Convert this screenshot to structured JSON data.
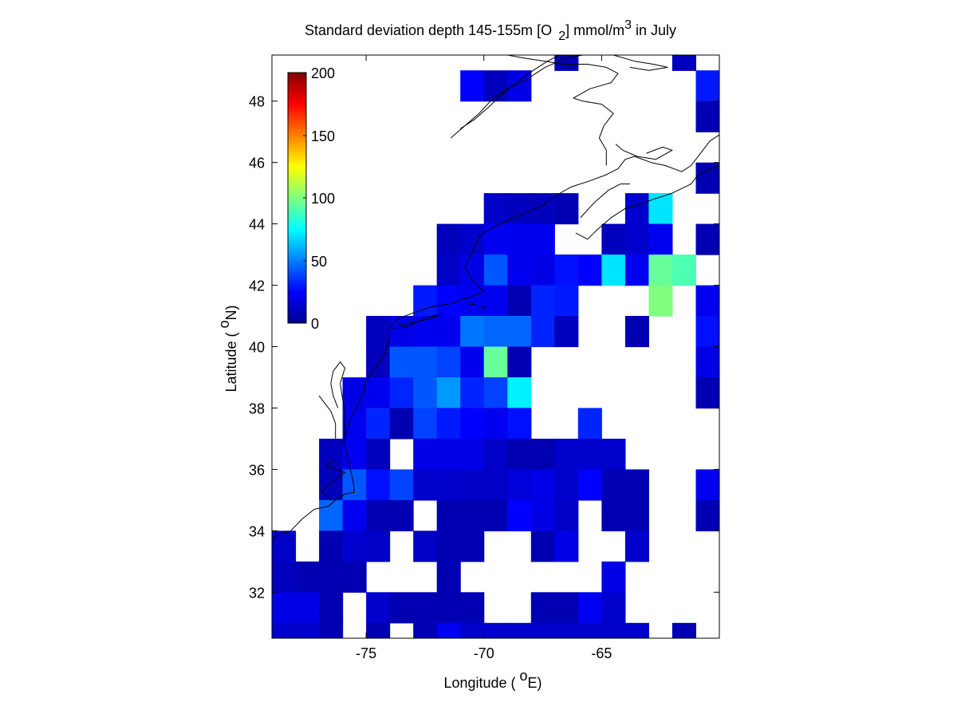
{
  "figure": {
    "title": {
      "pre": "Standard deviation depth 145-155m [O",
      "sub": "2",
      "mid": "] mmol/m",
      "sup": "3",
      "post": " in July"
    },
    "xlabel": {
      "pre": "Longitude ( ",
      "sup": "o",
      "post": "E)"
    },
    "ylabel": {
      "pre": "Latitude ( ",
      "sup": "o",
      "post": "N)"
    },
    "colorbar_ticks": [
      "200",
      "150",
      "100",
      "50",
      "0"
    ],
    "colormap": "jet",
    "land_color": "#ffffff",
    "coastline_color": "#000000"
  },
  "chart_data": {
    "type": "heatmap",
    "x_range": [
      -79.0,
      -60.0
    ],
    "y_range": [
      30.5,
      49.5
    ],
    "grid_step_deg": 1,
    "value_range": [
      0,
      200
    ],
    "x_ticks": [
      -75,
      -70,
      -65
    ],
    "x_tick_labels": [
      "-75",
      "-70",
      "-65"
    ],
    "y_ticks": [
      32,
      34,
      36,
      38,
      40,
      42,
      44,
      46,
      48
    ],
    "y_tick_labels": [
      "32",
      "34",
      "36",
      "38",
      "40",
      "42",
      "44",
      "46",
      "48"
    ],
    "cells_note": "each cell = [west longitude, south latitude, value]",
    "cells": [
      [
        -67,
        49,
        10
      ],
      [
        -62,
        49,
        12
      ],
      [
        -61,
        48,
        30
      ],
      [
        -71,
        48,
        25
      ],
      [
        -70,
        48,
        12
      ],
      [
        -69,
        48,
        20
      ],
      [
        -61,
        47,
        10
      ],
      [
        -61,
        45,
        10
      ],
      [
        -60,
        45,
        12
      ],
      [
        -70,
        44,
        14
      ],
      [
        -69,
        44,
        12
      ],
      [
        -68,
        44,
        12
      ],
      [
        -67,
        44,
        10
      ],
      [
        -64,
        44,
        15
      ],
      [
        -63,
        44,
        70
      ],
      [
        -72,
        43,
        12
      ],
      [
        -71,
        43,
        15
      ],
      [
        -70,
        43,
        22
      ],
      [
        -69,
        43,
        22
      ],
      [
        -68,
        43,
        22
      ],
      [
        -65,
        43,
        12
      ],
      [
        -64,
        43,
        15
      ],
      [
        -63,
        43,
        22
      ],
      [
        -61,
        43,
        10
      ],
      [
        -72,
        42,
        14
      ],
      [
        -71,
        42,
        20
      ],
      [
        -70,
        42,
        42
      ],
      [
        -69,
        42,
        22
      ],
      [
        -68,
        42,
        20
      ],
      [
        -67,
        42,
        28
      ],
      [
        -66,
        42,
        25
      ],
      [
        -65,
        42,
        70
      ],
      [
        -64,
        42,
        22
      ],
      [
        -63,
        42,
        95
      ],
      [
        -62,
        42,
        90
      ],
      [
        -73,
        41,
        30
      ],
      [
        -72,
        41,
        25
      ],
      [
        -71,
        41,
        22
      ],
      [
        -70,
        41,
        22
      ],
      [
        -69,
        41,
        10
      ],
      [
        -68,
        41,
        32
      ],
      [
        -67,
        41,
        30
      ],
      [
        -63,
        41,
        100
      ],
      [
        -61,
        41,
        22
      ],
      [
        -60,
        41,
        14
      ],
      [
        -75,
        40,
        12
      ],
      [
        -74,
        40,
        20
      ],
      [
        -73,
        40,
        22
      ],
      [
        -72,
        40,
        22
      ],
      [
        -71,
        40,
        48
      ],
      [
        -70,
        40,
        45
      ],
      [
        -69,
        40,
        45
      ],
      [
        -68,
        40,
        32
      ],
      [
        -67,
        40,
        12
      ],
      [
        -64,
        40,
        10
      ],
      [
        -61,
        40,
        28
      ],
      [
        -75,
        39,
        12
      ],
      [
        -74,
        39,
        42
      ],
      [
        -73,
        39,
        42
      ],
      [
        -72,
        39,
        38
      ],
      [
        -71,
        39,
        22
      ],
      [
        -70,
        39,
        95
      ],
      [
        -69,
        39,
        10
      ],
      [
        -61,
        39,
        20
      ],
      [
        -76,
        38,
        20
      ],
      [
        -75,
        38,
        22
      ],
      [
        -74,
        38,
        32
      ],
      [
        -73,
        38,
        42
      ],
      [
        -72,
        38,
        55
      ],
      [
        -71,
        38,
        32
      ],
      [
        -70,
        38,
        38
      ],
      [
        -69,
        38,
        72
      ],
      [
        -61,
        38,
        10
      ],
      [
        -60,
        38,
        10
      ],
      [
        -76,
        37,
        22
      ],
      [
        -75,
        37,
        32
      ],
      [
        -74,
        37,
        10
      ],
      [
        -73,
        37,
        38
      ],
      [
        -72,
        37,
        30
      ],
      [
        -71,
        37,
        25
      ],
      [
        -70,
        37,
        22
      ],
      [
        -69,
        37,
        28
      ],
      [
        -66,
        37,
        32
      ],
      [
        -60,
        37,
        10
      ],
      [
        -77,
        36,
        12
      ],
      [
        -76,
        36,
        22
      ],
      [
        -75,
        36,
        12
      ],
      [
        -73,
        36,
        20
      ],
      [
        -72,
        36,
        20
      ],
      [
        -71,
        36,
        20
      ],
      [
        -70,
        36,
        14
      ],
      [
        -69,
        36,
        10
      ],
      [
        -68,
        36,
        10
      ],
      [
        -67,
        36,
        15
      ],
      [
        -66,
        36,
        15
      ],
      [
        -65,
        36,
        15
      ],
      [
        -77,
        35,
        12
      ],
      [
        -76,
        35,
        42
      ],
      [
        -75,
        35,
        28
      ],
      [
        -74,
        35,
        38
      ],
      [
        -73,
        35,
        15
      ],
      [
        -72,
        35,
        15
      ],
      [
        -71,
        35,
        14
      ],
      [
        -70,
        35,
        14
      ],
      [
        -69,
        35,
        18
      ],
      [
        -68,
        35,
        20
      ],
      [
        -67,
        35,
        15
      ],
      [
        -66,
        35,
        25
      ],
      [
        -65,
        35,
        10
      ],
      [
        -64,
        35,
        10
      ],
      [
        -61,
        35,
        22
      ],
      [
        -77,
        34,
        45
      ],
      [
        -76,
        34,
        22
      ],
      [
        -75,
        34,
        10
      ],
      [
        -74,
        34,
        10
      ],
      [
        -72,
        34,
        10
      ],
      [
        -71,
        34,
        10
      ],
      [
        -70,
        34,
        10
      ],
      [
        -69,
        34,
        25
      ],
      [
        -68,
        34,
        20
      ],
      [
        -67,
        34,
        14
      ],
      [
        -65,
        34,
        10
      ],
      [
        -64,
        34,
        10
      ],
      [
        -61,
        34,
        10
      ],
      [
        -79,
        33,
        14
      ],
      [
        -77,
        33,
        10
      ],
      [
        -76,
        33,
        15
      ],
      [
        -75,
        33,
        14
      ],
      [
        -73,
        33,
        14
      ],
      [
        -72,
        33,
        10
      ],
      [
        -71,
        33,
        10
      ],
      [
        -68,
        33,
        10
      ],
      [
        -67,
        33,
        20
      ],
      [
        -64,
        33,
        15
      ],
      [
        -79,
        32,
        12
      ],
      [
        -78,
        32,
        10
      ],
      [
        -77,
        32,
        10
      ],
      [
        -76,
        32,
        10
      ],
      [
        -72,
        32,
        10
      ],
      [
        -65,
        32,
        20
      ],
      [
        -79,
        31,
        20
      ],
      [
        -78,
        31,
        20
      ],
      [
        -77,
        31,
        10
      ],
      [
        -75,
        31,
        15
      ],
      [
        -74,
        31,
        10
      ],
      [
        -73,
        31,
        10
      ],
      [
        -72,
        31,
        10
      ],
      [
        -71,
        31,
        10
      ],
      [
        -68,
        31,
        10
      ],
      [
        -67,
        31,
        10
      ],
      [
        -66,
        31,
        22
      ],
      [
        -65,
        31,
        15
      ],
      [
        -79,
        30.5,
        15
      ],
      [
        -78,
        30.5,
        15
      ],
      [
        -77,
        30.5,
        10
      ],
      [
        -75,
        30.5,
        10
      ],
      [
        -73,
        30.5,
        10
      ],
      [
        -72,
        30.5,
        22
      ],
      [
        -71,
        30.5,
        15
      ],
      [
        -70,
        30.5,
        15
      ],
      [
        -69,
        30.5,
        15
      ],
      [
        -68,
        30.5,
        15
      ],
      [
        -67,
        30.5,
        15
      ],
      [
        -66,
        30.5,
        15
      ],
      [
        -65,
        30.5,
        15
      ],
      [
        -64,
        30.5,
        15
      ],
      [
        -62,
        30.5,
        10
      ]
    ],
    "coastline": [
      [
        [
          -79.0,
          33.7
        ],
        [
          -78.7,
          33.9
        ],
        [
          -78.2,
          34.0
        ],
        [
          -77.7,
          34.4
        ],
        [
          -77.2,
          34.7
        ],
        [
          -76.6,
          34.8
        ],
        [
          -76.3,
          35.0
        ],
        [
          -75.9,
          35.2
        ],
        [
          -75.5,
          35.25
        ],
        [
          -75.55,
          35.6
        ],
        [
          -75.7,
          36.1
        ],
        [
          -75.95,
          36.9
        ],
        [
          -75.7,
          37.6
        ],
        [
          -75.35,
          38.1
        ],
        [
          -75.1,
          38.5
        ],
        [
          -75.05,
          38.8
        ],
        [
          -74.9,
          39.0
        ],
        [
          -74.6,
          39.3
        ],
        [
          -74.2,
          39.8
        ],
        [
          -74.0,
          40.3
        ],
        [
          -74.0,
          40.6
        ],
        [
          -73.7,
          40.9
        ],
        [
          -73.0,
          41.1
        ],
        [
          -72.2,
          41.3
        ],
        [
          -71.4,
          41.4
        ],
        [
          -70.9,
          41.55
        ],
        [
          -70.6,
          41.6
        ],
        [
          -70.0,
          41.8
        ],
        [
          -70.3,
          42.0
        ],
        [
          -70.6,
          42.3
        ],
        [
          -70.8,
          42.6
        ],
        [
          -70.6,
          42.9
        ],
        [
          -70.2,
          43.6
        ],
        [
          -69.6,
          43.9
        ],
        [
          -69.0,
          44.1
        ],
        [
          -68.4,
          44.3
        ],
        [
          -67.5,
          44.6
        ],
        [
          -67.0,
          44.9
        ],
        [
          -66.3,
          45.2
        ],
        [
          -65.5,
          45.4
        ],
        [
          -64.8,
          45.6
        ],
        [
          -64.3,
          45.8
        ],
        [
          -64.0,
          46.1
        ],
        [
          -63.6,
          46.2
        ],
        [
          -62.9,
          46.0
        ],
        [
          -62.3,
          45.9
        ],
        [
          -61.6,
          45.7
        ],
        [
          -61.2,
          45.9
        ],
        [
          -60.8,
          46.3
        ],
        [
          -60.4,
          46.7
        ],
        [
          -60.0,
          46.9
        ]
      ],
      [
        [
          -66.1,
          43.7
        ],
        [
          -65.6,
          43.5
        ],
        [
          -65.2,
          43.8
        ],
        [
          -64.6,
          44.2
        ],
        [
          -64.0,
          44.5
        ],
        [
          -63.5,
          44.6
        ],
        [
          -62.8,
          44.8
        ],
        [
          -62.0,
          45.0
        ],
        [
          -61.2,
          45.3
        ],
        [
          -60.9,
          45.6
        ],
        [
          -60.3,
          45.8
        ],
        [
          -60.0,
          45.9
        ]
      ],
      [
        [
          -65.9,
          44.2
        ],
        [
          -65.3,
          44.7
        ],
        [
          -64.7,
          45.1
        ],
        [
          -64.2,
          45.3
        ],
        [
          -63.8,
          45.3
        ]
      ],
      [
        [
          -63.1,
          46.3
        ],
        [
          -62.4,
          46.5
        ],
        [
          -62.0,
          46.4
        ],
        [
          -62.7,
          46.1
        ],
        [
          -63.5,
          46.2
        ],
        [
          -64.1,
          46.4
        ],
        [
          -64.4,
          46.6
        ]
      ],
      [
        [
          -64.8,
          45.9
        ],
        [
          -64.8,
          46.4
        ],
        [
          -65.1,
          46.8
        ],
        [
          -64.9,
          47.2
        ],
        [
          -64.5,
          47.6
        ],
        [
          -65.0,
          47.9
        ],
        [
          -65.8,
          48.0
        ],
        [
          -66.2,
          48.1
        ],
        [
          -65.5,
          48.4
        ],
        [
          -64.6,
          48.6
        ],
        [
          -64.3,
          48.9
        ],
        [
          -64.8,
          49.1
        ],
        [
          -65.6,
          49.2
        ],
        [
          -66.6,
          49.2
        ],
        [
          -67.4,
          49.3
        ],
        [
          -68.3,
          49.4
        ],
        [
          -69.0,
          49.5
        ]
      ],
      [
        [
          -71.0,
          47.1
        ],
        [
          -70.4,
          47.4
        ],
        [
          -69.8,
          47.8
        ],
        [
          -69.4,
          48.1
        ],
        [
          -68.8,
          48.5
        ],
        [
          -68.1,
          48.9
        ],
        [
          -67.3,
          49.3
        ],
        [
          -66.8,
          49.5
        ]
      ],
      [
        [
          -71.4,
          46.8
        ],
        [
          -70.8,
          47.2
        ],
        [
          -70.2,
          47.6
        ],
        [
          -69.6,
          48.1
        ],
        [
          -69.0,
          48.4
        ],
        [
          -68.2,
          48.7
        ],
        [
          -67.4,
          49.1
        ],
        [
          -66.5,
          49.4
        ],
        [
          -65.8,
          49.5
        ]
      ],
      [
        [
          -64.5,
          49.5
        ],
        [
          -63.6,
          49.3
        ],
        [
          -62.8,
          49.2
        ],
        [
          -62.2,
          49.1
        ],
        [
          -63.0,
          49.0
        ],
        [
          -63.8,
          49.1
        ]
      ],
      [
        [
          -73.6,
          40.7
        ],
        [
          -73.0,
          40.8
        ],
        [
          -72.3,
          40.9
        ],
        [
          -71.85,
          41.05
        ],
        [
          -72.4,
          40.95
        ],
        [
          -73.3,
          40.65
        ],
        [
          -73.9,
          40.6
        ]
      ],
      [
        [
          -76.2,
          38.0
        ],
        [
          -76.4,
          38.4
        ],
        [
          -76.5,
          38.8
        ],
        [
          -76.4,
          39.2
        ],
        [
          -76.1,
          39.5
        ],
        [
          -75.9,
          39.3
        ],
        [
          -76.1,
          38.8
        ],
        [
          -76.0,
          38.3
        ],
        [
          -75.9,
          37.9
        ],
        [
          -75.9,
          37.5
        ],
        [
          -75.9,
          37.1
        ]
      ],
      [
        [
          -76.3,
          37.0
        ],
        [
          -76.3,
          37.5
        ],
        [
          -76.5,
          37.9
        ],
        [
          -76.8,
          38.2
        ],
        [
          -77.0,
          38.4
        ]
      ],
      [
        [
          -76.5,
          35.0
        ],
        [
          -76.9,
          35.3
        ],
        [
          -76.4,
          35.6
        ],
        [
          -75.9,
          35.9
        ],
        [
          -76.3,
          36.0
        ],
        [
          -76.7,
          36.1
        ],
        [
          -76.4,
          36.3
        ]
      ],
      [
        [
          -70.6,
          41.35
        ],
        [
          -70.4,
          41.38
        ],
        [
          -70.6,
          41.45
        ]
      ],
      [
        [
          -70.1,
          41.25
        ],
        [
          -69.95,
          41.28
        ],
        [
          -70.1,
          41.32
        ]
      ]
    ]
  }
}
